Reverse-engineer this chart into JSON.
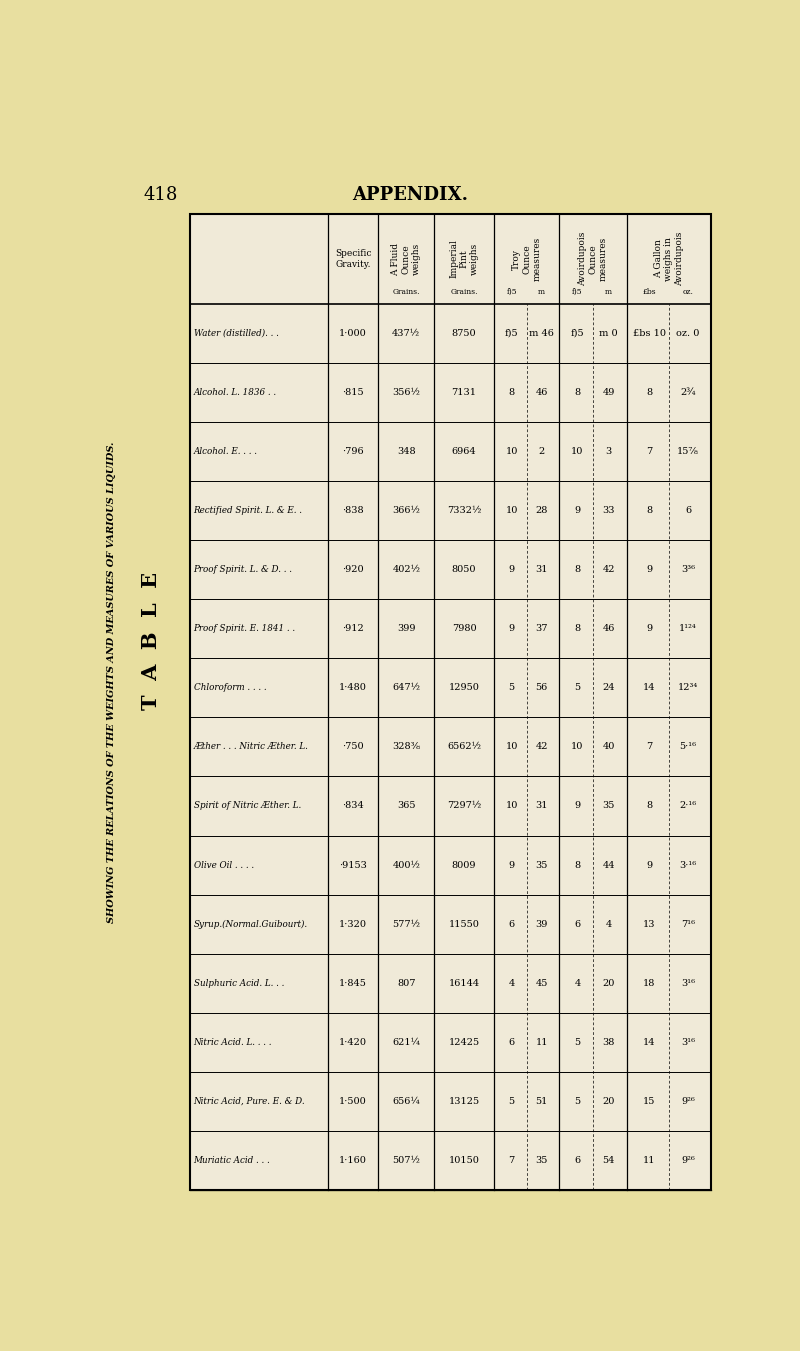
{
  "page_num": "418",
  "page_header": "APPENDIX.",
  "side_label": "SHOWING THE RELATIONS OF THE WEIGHTS AND MEASURES OF VARIOUS LIQUIDS.",
  "table_title": "T  A  B  L  E",
  "bg_color": "#e8dfa0",
  "table_bg": "#f0ead8",
  "rows": [
    {
      "name": "Water (distilled). . .",
      "sp_grav": "1·000",
      "fluid_oz": "437½",
      "imp_pint": "8750",
      "troy_f": "f)5",
      "troy_m": "m 46",
      "avdp_f": "f)5",
      "avdp_m": "m 0",
      "gal_lbs": "£bs 10",
      "gal_oz": "oz. 0"
    },
    {
      "name": "Alcohol. L. 1836 . .",
      "sp_grav": "·815",
      "fluid_oz": "356½",
      "imp_pint": "7131",
      "troy_f": "8",
      "troy_m": "46",
      "avdp_f": "8",
      "avdp_m": "49",
      "gal_lbs": "8",
      "gal_oz": "2¾"
    },
    {
      "name": "Alcohol. E. . . .",
      "sp_grav": "·796",
      "fluid_oz": "348",
      "imp_pint": "6964",
      "troy_f": "10",
      "troy_m": "2",
      "avdp_f": "10",
      "avdp_m": "3",
      "gal_lbs": "7",
      "gal_oz": "15⅞"
    },
    {
      "name": "Rectified Spirit. L. & E. .",
      "sp_grav": "·838",
      "fluid_oz": "366½",
      "imp_pint": "7332½",
      "troy_f": "10",
      "troy_m": "28",
      "avdp_f": "9",
      "avdp_m": "33",
      "gal_lbs": "8",
      "gal_oz": "6"
    },
    {
      "name": "Proof Spirit. L. & D. . .",
      "sp_grav": "·920",
      "fluid_oz": "402½",
      "imp_pint": "8050",
      "troy_f": "9",
      "troy_m": "31",
      "avdp_f": "8",
      "avdp_m": "42",
      "gal_lbs": "9",
      "gal_oz": "3³⁶"
    },
    {
      "name": "Proof Spirit. E. 1841 . .",
      "sp_grav": "·912",
      "fluid_oz": "399",
      "imp_pint": "7980",
      "troy_f": "9",
      "troy_m": "37",
      "avdp_f": "8",
      "avdp_m": "46",
      "gal_lbs": "9",
      "gal_oz": "1¹²⁴"
    },
    {
      "name": "Chloroform . . . .",
      "sp_grav": "1·480",
      "fluid_oz": "647½",
      "imp_pint": "12950",
      "troy_f": "5",
      "troy_m": "56",
      "avdp_f": "5",
      "avdp_m": "24",
      "gal_lbs": "14",
      "gal_oz": "12³⁴"
    },
    {
      "name": "Æther . . . Nitric Æther. L.",
      "sp_grav": "·750",
      "fluid_oz": "328⅜",
      "imp_pint": "6562½",
      "troy_f": "10",
      "troy_m": "42",
      "avdp_f": "10",
      "avdp_m": "40",
      "gal_lbs": "7",
      "gal_oz": "5·¹⁶"
    },
    {
      "name": "Spirit of Nitric Æther. L.",
      "sp_grav": "·834",
      "fluid_oz": "365",
      "imp_pint": "7297½",
      "troy_f": "10",
      "troy_m": "31",
      "avdp_f": "9",
      "avdp_m": "35",
      "gal_lbs": "8",
      "gal_oz": "2·¹⁶"
    },
    {
      "name": "Olive Oil . . . .",
      "sp_grav": "·9153",
      "fluid_oz": "400½",
      "imp_pint": "8009",
      "troy_f": "9",
      "troy_m": "35",
      "avdp_f": "8",
      "avdp_m": "44",
      "gal_lbs": "9",
      "gal_oz": "3·¹⁶"
    },
    {
      "name": "Syrup.(Normal.Guibourt).",
      "sp_grav": "1·320",
      "fluid_oz": "577½",
      "imp_pint": "11550",
      "troy_f": "6",
      "troy_m": "39",
      "avdp_f": "6",
      "avdp_m": "4",
      "gal_lbs": "13",
      "gal_oz": "7¹⁶"
    },
    {
      "name": "Sulphuric Acid. L. . .",
      "sp_grav": "1·845",
      "fluid_oz": "807",
      "imp_pint": "16144",
      "troy_f": "4",
      "troy_m": "45",
      "avdp_f": "4",
      "avdp_m": "20",
      "gal_lbs": "18",
      "gal_oz": "3¹⁶"
    },
    {
      "name": "Nitric Acid. L. . . .",
      "sp_grav": "1·420",
      "fluid_oz": "621¼",
      "imp_pint": "12425",
      "troy_f": "6",
      "troy_m": "11",
      "avdp_f": "5",
      "avdp_m": "38",
      "gal_lbs": "14",
      "gal_oz": "3¹⁶"
    },
    {
      "name": "Nitric Acid, Pure. E. & D.",
      "sp_grav": "1·500",
      "fluid_oz": "656¼",
      "imp_pint": "13125",
      "troy_f": "5",
      "troy_m": "51",
      "avdp_f": "5",
      "avdp_m": "20",
      "gal_lbs": "15",
      "gal_oz": "9²⁶"
    },
    {
      "name": "Muriatic Acid . . .",
      "sp_grav": "1·160",
      "fluid_oz": "507½",
      "imp_pint": "10150",
      "troy_f": "7",
      "troy_m": "35",
      "avdp_f": "6",
      "avdp_m": "54",
      "gal_lbs": "11",
      "gal_oz": "9²⁶"
    }
  ]
}
